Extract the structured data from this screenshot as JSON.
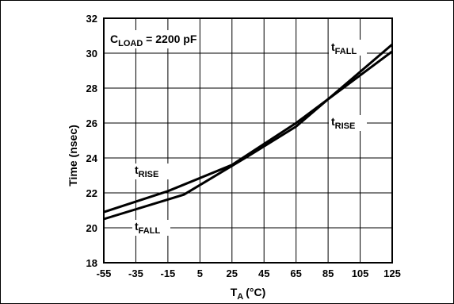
{
  "chart_data": {
    "type": "line",
    "xlabel": "T",
    "xlabel_sub": "A",
    "xlabel_unit": "(°C)",
    "ylabel": "Time (nsec)",
    "xlim": [
      -55,
      125
    ],
    "ylim": [
      18,
      32
    ],
    "x_ticks": [
      "-55",
      "-35",
      "-15",
      "5",
      "25",
      "45",
      "65",
      "85",
      "105",
      "125"
    ],
    "y_ticks": [
      "18",
      "20",
      "22",
      "24",
      "26",
      "28",
      "30",
      "32"
    ],
    "grid": true,
    "condition": {
      "main": "C",
      "sub": "LOAD",
      "rest": " = 2200 pF"
    },
    "series": [
      {
        "name": "tRISE",
        "label_main": "t",
        "label_sub": "RISE",
        "x": [
          -55,
          -15,
          25,
          65,
          125
        ],
        "y": [
          20.9,
          22.1,
          23.6,
          26.0,
          30.1
        ]
      },
      {
        "name": "tFALL",
        "label_main": "t",
        "label_sub": "FALL",
        "x": [
          -55,
          -5,
          35,
          65,
          125
        ],
        "y": [
          20.5,
          21.9,
          24.1,
          25.8,
          30.5
        ]
      }
    ]
  }
}
